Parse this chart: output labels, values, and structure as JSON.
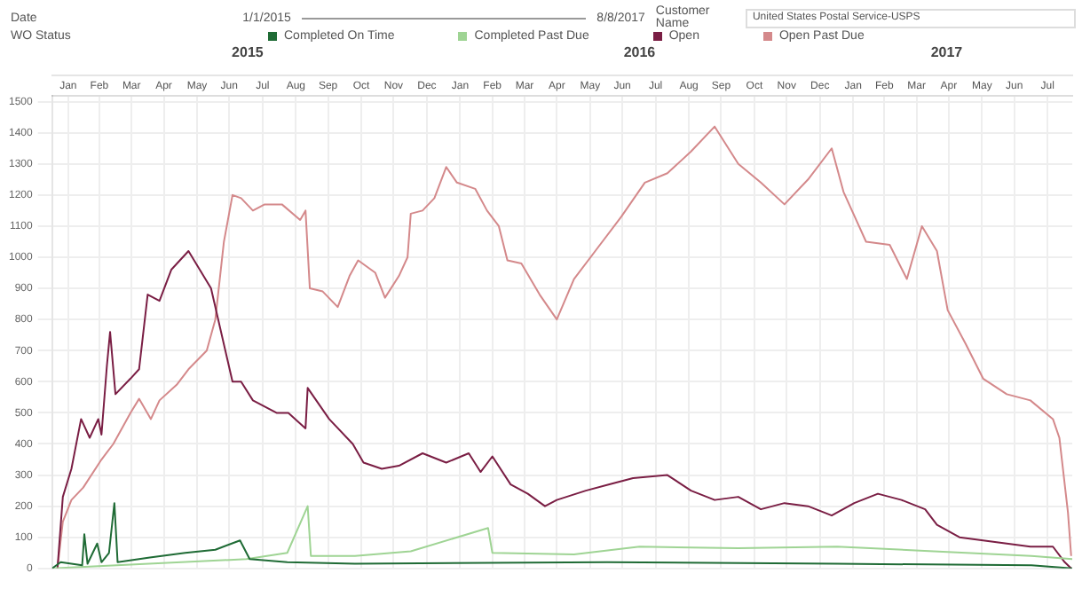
{
  "chart_data": {
    "type": "line",
    "legend_title": "WO Status",
    "legend": "top left",
    "grid": true,
    "annotations": [
      "Date",
      "1/1/2015",
      "8/8/2017",
      "Customer Name",
      "United States Postal Service-USPS"
    ],
    "xlim": [
      "2015-01-01",
      "2017-08-08"
    ],
    "xticks": [
      {
        "value": "2015-01-16",
        "label": "Jan"
      },
      {
        "value": "2015-02-14",
        "label": "Feb"
      },
      {
        "value": "2015-03-16",
        "label": "Mar"
      },
      {
        "value": "2015-04-15",
        "label": "Apr"
      },
      {
        "value": "2015-05-16",
        "label": "May"
      },
      {
        "value": "2015-06-15",
        "label": "Jun"
      },
      {
        "value": "2015-07-16",
        "label": "Jul"
      },
      {
        "value": "2015-08-16",
        "label": "Aug"
      },
      {
        "value": "2015-09-15",
        "label": "Sep"
      },
      {
        "value": "2015-10-16",
        "label": "Oct"
      },
      {
        "value": "2015-11-15",
        "label": "Nov"
      },
      {
        "value": "2015-12-16",
        "label": "Dec"
      },
      {
        "value": "2016-01-16",
        "label": "Jan"
      },
      {
        "value": "2016-02-15",
        "label": "Feb"
      },
      {
        "value": "2016-03-16",
        "label": "Mar"
      },
      {
        "value": "2016-04-15",
        "label": "Apr"
      },
      {
        "value": "2016-05-16",
        "label": "May"
      },
      {
        "value": "2016-06-15",
        "label": "Jun"
      },
      {
        "value": "2016-07-16",
        "label": "Jul"
      },
      {
        "value": "2016-08-16",
        "label": "Aug"
      },
      {
        "value": "2016-09-15",
        "label": "Sep"
      },
      {
        "value": "2016-10-16",
        "label": "Oct"
      },
      {
        "value": "2016-11-15",
        "label": "Nov"
      },
      {
        "value": "2016-12-16",
        "label": "Dec"
      },
      {
        "value": "2017-01-16",
        "label": "Jan"
      },
      {
        "value": "2017-02-14",
        "label": "Feb"
      },
      {
        "value": "2017-03-16",
        "label": "Mar"
      },
      {
        "value": "2017-04-15",
        "label": "Apr"
      },
      {
        "value": "2017-05-16",
        "label": "May"
      },
      {
        "value": "2017-06-15",
        "label": "Jun"
      },
      {
        "value": "2017-07-16",
        "label": "Jul"
      }
    ],
    "x2lim": [
      "2015-01-01",
      "2017-08-08"
    ],
    "x2ticks": [
      {
        "value": "2015-07-02",
        "label": "2015"
      },
      {
        "value": "2016-07-01",
        "label": "2016"
      },
      {
        "value": "2017-04-13",
        "label": "2017"
      }
    ],
    "ylim": [
      0,
      1520
    ],
    "yticks": [
      0,
      100,
      200,
      300,
      400,
      500,
      600,
      700,
      800,
      900,
      1000,
      1100,
      1200,
      1300,
      1400,
      1500
    ],
    "series": [
      {
        "name": "Completed On Time",
        "color": "#1f6b35",
        "x": [
          "2015-01-01",
          "2015-01-09",
          "2015-01-29",
          "2015-01-31",
          "2015-02-03",
          "2015-02-12",
          "2015-02-16",
          "2015-02-23",
          "2015-02-28",
          "2015-03-03",
          "2015-04-02",
          "2015-05-05",
          "2015-06-02",
          "2015-06-25",
          "2015-07-04",
          "2015-08-08",
          "2015-10-10",
          "2016-06-01",
          "2017-01-01",
          "2017-07-01",
          "2017-08-08"
        ],
        "values": [
          0,
          20,
          10,
          110,
          15,
          80,
          20,
          50,
          210,
          20,
          35,
          50,
          60,
          90,
          30,
          20,
          15,
          20,
          15,
          10,
          0
        ]
      },
      {
        "name": "Completed Past Due",
        "color": "#9fd494",
        "x": [
          "2015-01-01",
          "2015-04-01",
          "2015-07-01",
          "2015-08-08",
          "2015-08-27",
          "2015-08-30",
          "2015-10-10",
          "2015-12-01",
          "2016-02-11",
          "2016-02-15",
          "2016-05-01",
          "2016-07-01",
          "2016-10-01",
          "2017-01-01",
          "2017-04-01",
          "2017-07-01",
          "2017-08-08"
        ],
        "values": [
          0,
          15,
          30,
          50,
          200,
          40,
          40,
          55,
          130,
          50,
          45,
          70,
          65,
          70,
          55,
          40,
          30
        ]
      },
      {
        "name": "Open",
        "color": "#7a1e44",
        "x": [
          "2015-01-06",
          "2015-01-11",
          "2015-01-19",
          "2015-01-28",
          "2015-02-05",
          "2015-02-13",
          "2015-02-16",
          "2015-02-21",
          "2015-02-24",
          "2015-03-01",
          "2015-03-15",
          "2015-03-23",
          "2015-03-31",
          "2015-04-11",
          "2015-04-22",
          "2015-05-08",
          "2015-05-29",
          "2015-06-10",
          "2015-06-18",
          "2015-06-26",
          "2015-07-07",
          "2015-07-29",
          "2015-08-09",
          "2015-08-25",
          "2015-08-27",
          "2015-09-16",
          "2015-10-08",
          "2015-10-18",
          "2015-11-04",
          "2015-11-20",
          "2015-12-12",
          "2016-01-03",
          "2016-01-24",
          "2016-02-04",
          "2016-02-15",
          "2016-03-03",
          "2016-03-19",
          "2016-04-04",
          "2016-04-15",
          "2016-05-12",
          "2016-06-03",
          "2016-06-25",
          "2016-07-27",
          "2016-08-18",
          "2016-09-09",
          "2016-10-01",
          "2016-10-22",
          "2016-11-13",
          "2016-12-05",
          "2016-12-27",
          "2017-01-17",
          "2017-02-08",
          "2017-03-02",
          "2017-03-24",
          "2017-04-04",
          "2017-04-25",
          "2017-05-17",
          "2017-06-08",
          "2017-06-30",
          "2017-07-21",
          "2017-08-01",
          "2017-08-07"
        ],
        "values": [
          0,
          230,
          320,
          480,
          420,
          480,
          430,
          650,
          760,
          560,
          610,
          640,
          880,
          860,
          960,
          1020,
          900,
          720,
          600,
          600,
          540,
          500,
          500,
          450,
          580,
          480,
          400,
          340,
          320,
          330,
          370,
          340,
          370,
          310,
          360,
          270,
          240,
          200,
          220,
          250,
          270,
          290,
          300,
          250,
          220,
          230,
          190,
          210,
          200,
          170,
          210,
          240,
          220,
          190,
          140,
          100,
          90,
          80,
          70,
          70,
          20,
          0
        ]
      },
      {
        "name": "Open Past Due",
        "color": "#d4898b",
        "x": [
          "2015-01-06",
          "2015-01-11",
          "2015-01-19",
          "2015-01-30",
          "2015-02-16",
          "2015-02-27",
          "2015-03-15",
          "2015-03-23",
          "2015-04-03",
          "2015-04-11",
          "2015-04-27",
          "2015-05-08",
          "2015-05-25",
          "2015-06-02",
          "2015-06-10",
          "2015-06-18",
          "2015-06-26",
          "2015-07-07",
          "2015-07-18",
          "2015-08-03",
          "2015-08-20",
          "2015-08-25",
          "2015-08-29",
          "2015-09-10",
          "2015-09-24",
          "2015-10-05",
          "2015-10-13",
          "2015-10-29",
          "2015-11-07",
          "2015-11-20",
          "2015-11-28",
          "2015-12-01",
          "2015-12-12",
          "2015-12-23",
          "2016-01-03",
          "2016-01-13",
          "2016-01-30",
          "2016-02-10",
          "2016-02-21",
          "2016-02-29",
          "2016-03-13",
          "2016-03-30",
          "2016-04-15",
          "2016-05-01",
          "2016-05-23",
          "2016-06-14",
          "2016-07-06",
          "2016-07-27",
          "2016-08-18",
          "2016-09-09",
          "2016-10-01",
          "2016-10-22",
          "2016-11-13",
          "2016-12-05",
          "2016-12-27",
          "2017-01-07",
          "2017-01-28",
          "2017-02-19",
          "2017-03-07",
          "2017-03-21",
          "2017-04-04",
          "2017-04-14",
          "2017-05-01",
          "2017-05-17",
          "2017-06-08",
          "2017-06-30",
          "2017-07-21",
          "2017-07-27",
          "2017-08-04",
          "2017-08-07"
        ],
        "values": [
          0,
          150,
          220,
          260,
          350,
          400,
          500,
          545,
          480,
          540,
          590,
          640,
          700,
          800,
          1050,
          1200,
          1190,
          1150,
          1170,
          1170,
          1120,
          1150,
          900,
          890,
          840,
          940,
          990,
          950,
          870,
          940,
          1000,
          1140,
          1150,
          1190,
          1290,
          1240,
          1220,
          1150,
          1100,
          990,
          980,
          880,
          800,
          930,
          1030,
          1130,
          1240,
          1270,
          1340,
          1420,
          1300,
          1240,
          1170,
          1250,
          1350,
          1210,
          1050,
          1040,
          930,
          1100,
          1020,
          830,
          720,
          610,
          560,
          540,
          480,
          420,
          180,
          40
        ]
      }
    ]
  }
}
